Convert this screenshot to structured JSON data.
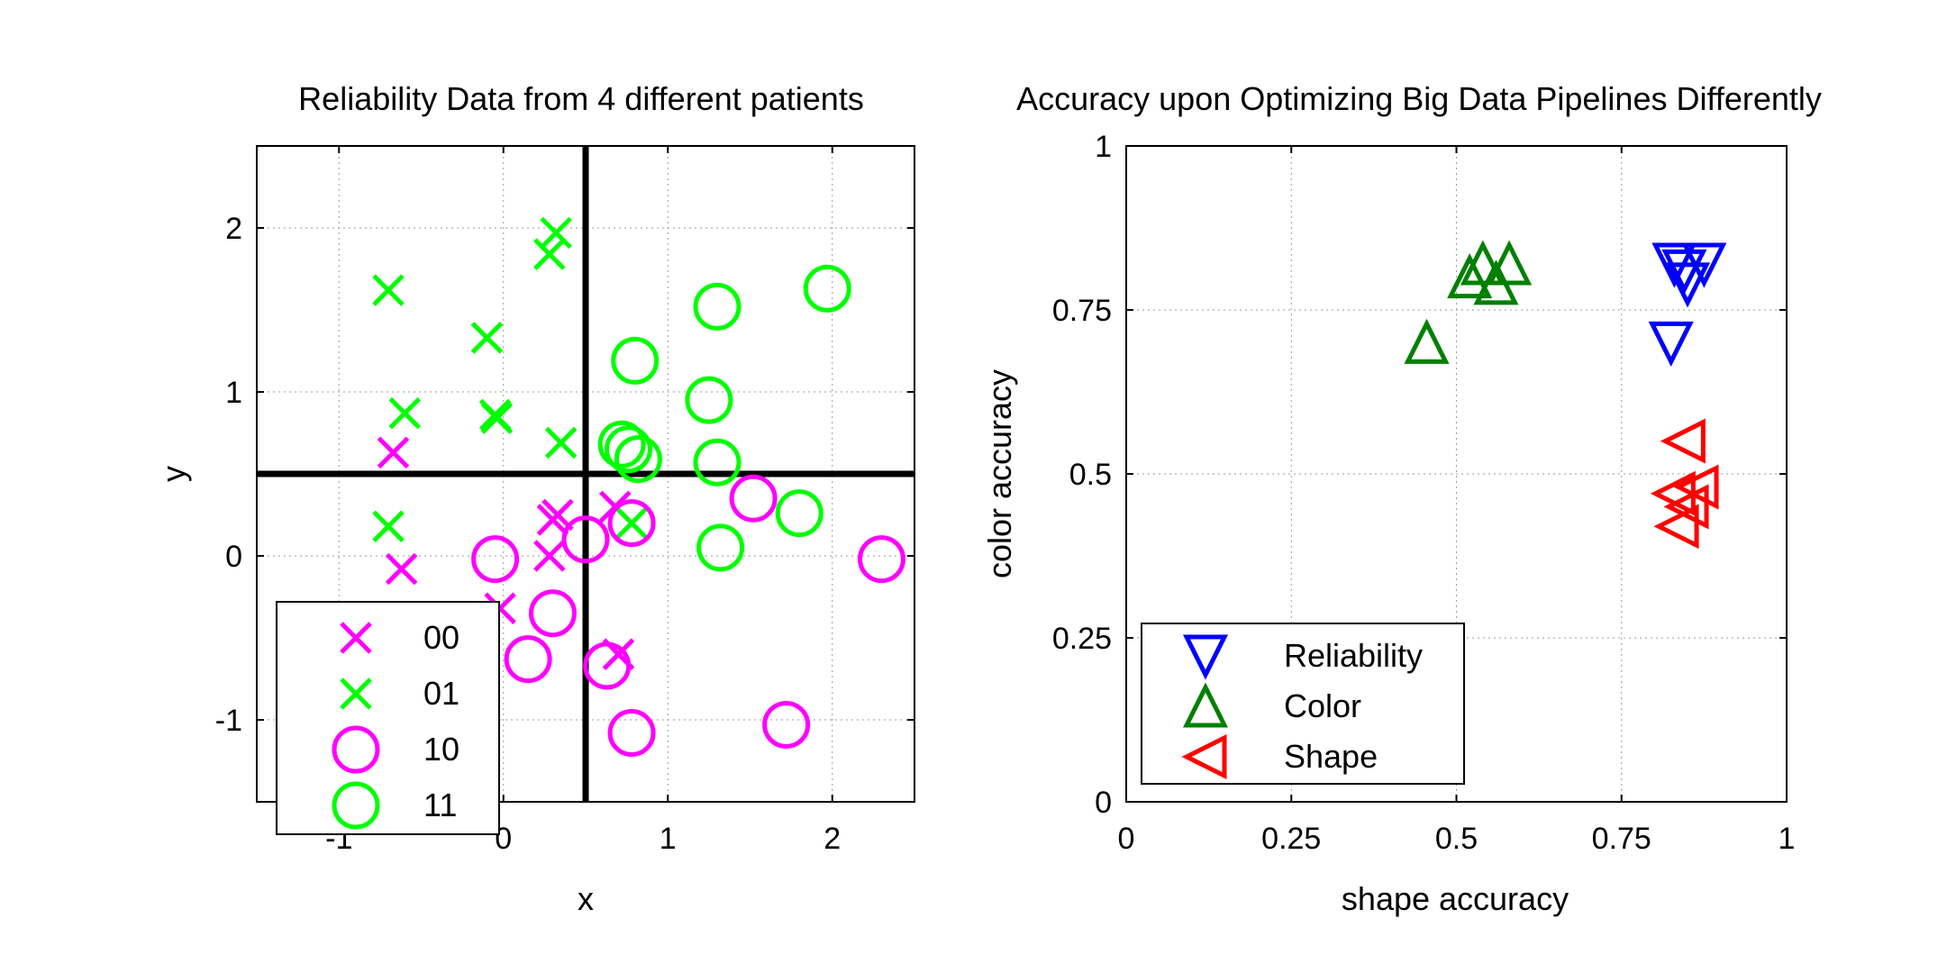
{
  "chart_data": [
    {
      "type": "scatter",
      "title": "Reliability Data from 4 different patients",
      "xlabel": "x",
      "ylabel": "y",
      "xlim": [
        -1.5,
        2.5
      ],
      "ylim": [
        -1.5,
        2.5
      ],
      "xticks": [
        -1,
        0,
        1,
        2
      ],
      "xtick_labels": [
        "-1",
        "0",
        "1",
        "2"
      ],
      "yticks": [
        -1,
        0,
        1,
        2
      ],
      "ytick_labels": [
        "-1",
        "0",
        "1",
        "2"
      ],
      "grid": true,
      "legend_position": "lower-left",
      "reference_lines": {
        "x": 0.5,
        "y": 0.5
      },
      "series": [
        {
          "name": "00",
          "marker": "x",
          "color": "#ff00ff",
          "points": [
            [
              -0.67,
              0.63
            ],
            [
              -0.62,
              -0.08
            ],
            [
              0.3,
              0.22
            ],
            [
              0.33,
              0.25
            ],
            [
              0.28,
              0.0
            ],
            [
              0.68,
              0.3
            ],
            [
              -0.02,
              -0.32
            ],
            [
              0.7,
              -0.6
            ]
          ]
        },
        {
          "name": "01",
          "marker": "x",
          "color": "#00ff00",
          "points": [
            [
              -0.7,
              1.62
            ],
            [
              -0.6,
              0.87
            ],
            [
              -0.7,
              0.18
            ],
            [
              -0.1,
              1.33
            ],
            [
              -0.05,
              0.86
            ],
            [
              -0.04,
              0.84
            ],
            [
              0.28,
              1.84
            ],
            [
              0.32,
              1.97
            ],
            [
              0.35,
              0.69
            ],
            [
              0.78,
              0.2
            ]
          ]
        },
        {
          "name": "10",
          "marker": "o",
          "color": "#ff00ff",
          "points": [
            [
              -0.05,
              -0.02
            ],
            [
              0.5,
              0.1
            ],
            [
              0.78,
              0.2
            ],
            [
              0.3,
              -0.35
            ],
            [
              0.15,
              -0.63
            ],
            [
              0.63,
              -0.67
            ],
            [
              0.78,
              -1.08
            ],
            [
              1.52,
              0.35
            ],
            [
              1.72,
              -1.03
            ],
            [
              2.3,
              -0.02
            ]
          ]
        },
        {
          "name": "11",
          "marker": "o",
          "color": "#00ff00",
          "points": [
            [
              1.3,
              1.52
            ],
            [
              1.97,
              1.63
            ],
            [
              0.8,
              1.19
            ],
            [
              1.25,
              0.95
            ],
            [
              0.72,
              0.68
            ],
            [
              0.76,
              0.65
            ],
            [
              0.82,
              0.59
            ],
            [
              1.3,
              0.57
            ],
            [
              1.8,
              0.26
            ],
            [
              1.32,
              0.05
            ]
          ]
        }
      ]
    },
    {
      "type": "scatter",
      "title": "Accuracy upon Optimizing Big Data Pipelines Differently",
      "xlabel": "shape accuracy",
      "ylabel": "color accuracy",
      "xlim": [
        0,
        1
      ],
      "ylim": [
        0,
        1
      ],
      "xticks": [
        0,
        0.25,
        0.5,
        0.75,
        1
      ],
      "xtick_labels": [
        "0",
        "0.25",
        "0.5",
        "0.75",
        "1"
      ],
      "yticks": [
        0,
        0.25,
        0.5,
        0.75,
        1
      ],
      "ytick_labels": [
        "0",
        "0.25",
        "0.5",
        "0.75",
        "1"
      ],
      "grid": true,
      "legend_position": "lower-left",
      "series": [
        {
          "name": "Reliability",
          "marker": "triangle-down",
          "color": "#0000ff",
          "points": [
            [
              0.83,
              0.82
            ],
            [
              0.845,
              0.81
            ],
            [
              0.875,
              0.82
            ],
            [
              0.85,
              0.79
            ],
            [
              0.825,
              0.7
            ]
          ]
        },
        {
          "name": "Color",
          "marker": "triangle-up",
          "color": "#008000",
          "points": [
            [
              0.52,
              0.8
            ],
            [
              0.54,
              0.82
            ],
            [
              0.58,
              0.82
            ],
            [
              0.56,
              0.79
            ],
            [
              0.455,
              0.7
            ]
          ]
        },
        {
          "name": "Shape",
          "marker": "triangle-left",
          "color": "#ff0000",
          "points": [
            [
              0.845,
              0.55
            ],
            [
              0.865,
              0.48
            ],
            [
              0.83,
              0.47
            ],
            [
              0.85,
              0.45
            ],
            [
              0.835,
              0.42
            ]
          ]
        }
      ]
    }
  ]
}
